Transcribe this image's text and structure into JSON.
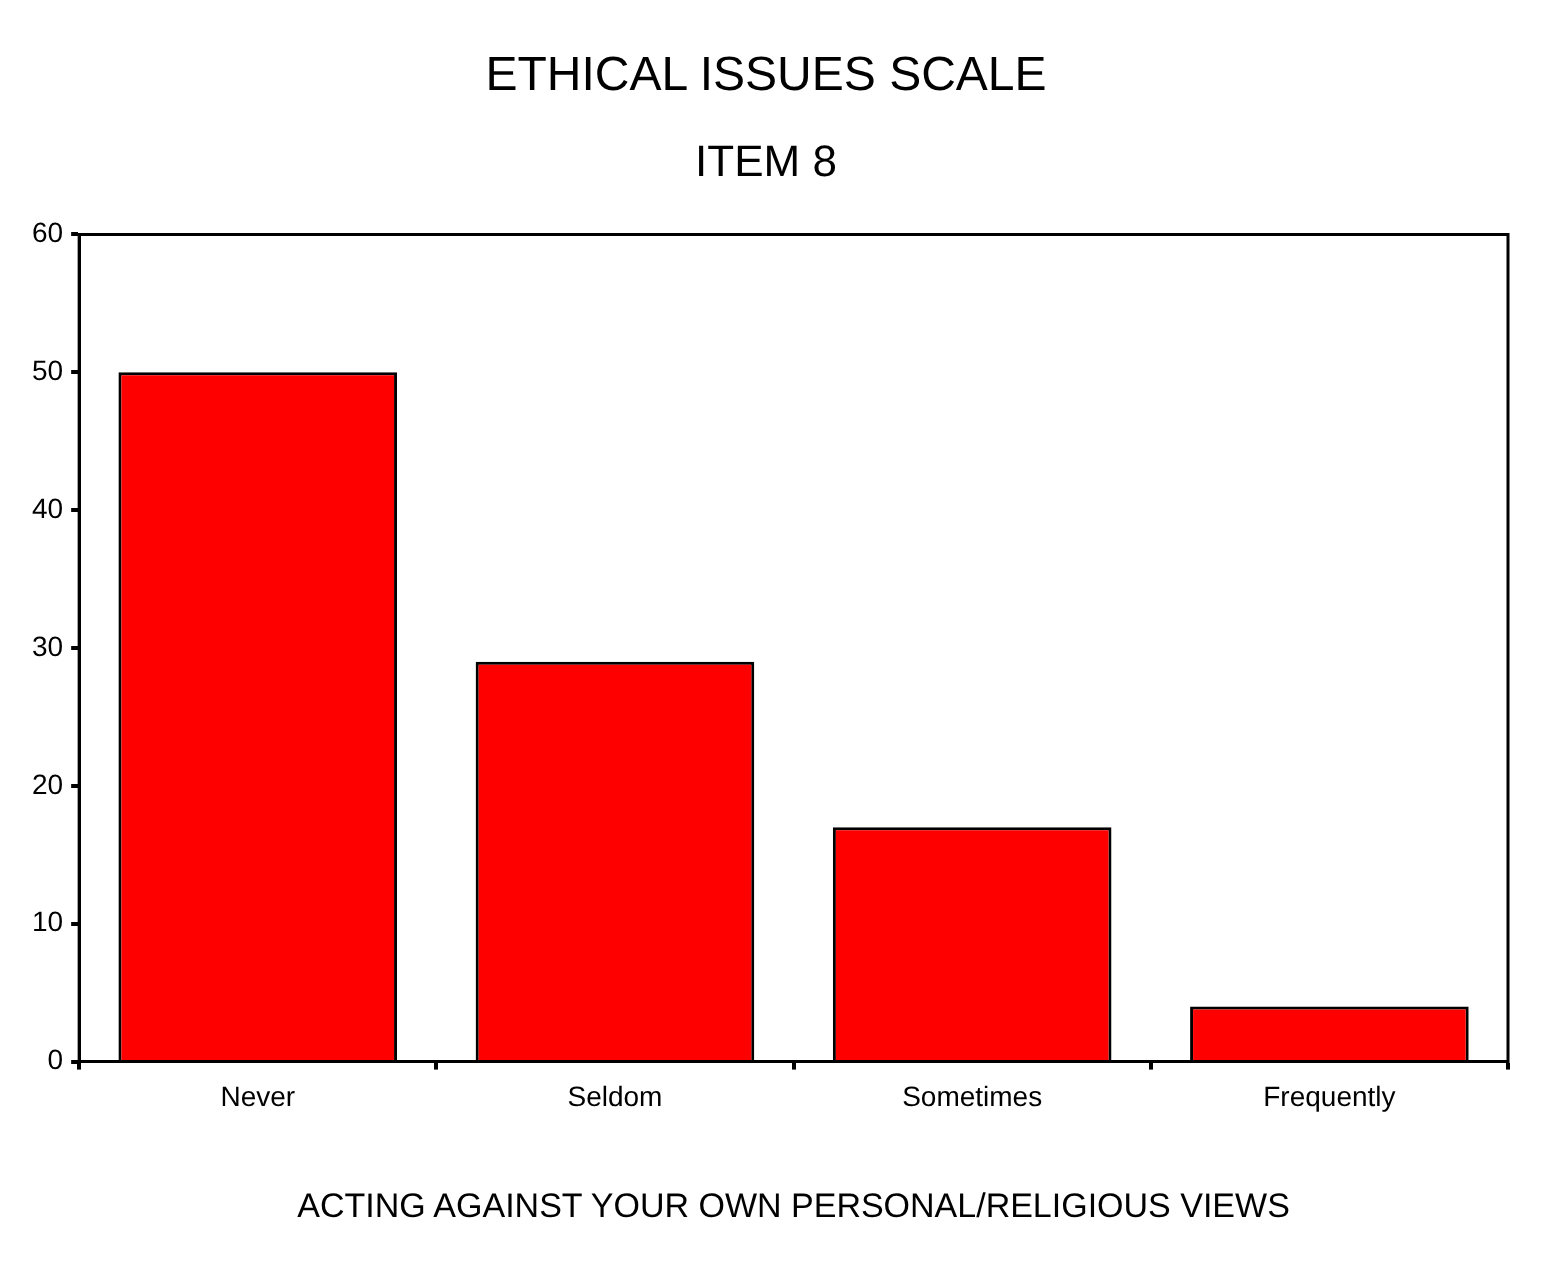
{
  "chart_data": {
    "type": "bar",
    "title": "ETHICAL ISSUES SCALE",
    "subtitle": "ITEM 8",
    "xlabel": "ACTING AGAINST YOUR OWN PERSONAL/RELIGIOUS VIEWS",
    "categories": [
      "Never",
      "Seldom",
      "Sometimes",
      "Frequently"
    ],
    "values": [
      50,
      29,
      17,
      4
    ],
    "color": "#ff0000",
    "ylim": [
      0,
      60
    ],
    "yticks": [
      0,
      10,
      20,
      30,
      40,
      50,
      60
    ],
    "grid": false
  }
}
